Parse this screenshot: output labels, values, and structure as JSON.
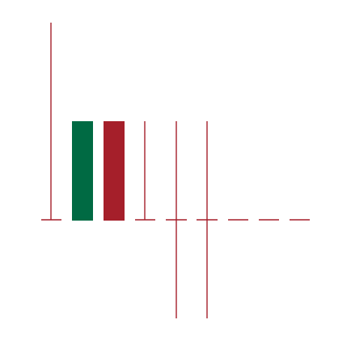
{
  "colors": {
    "background": "#ffffff",
    "line": "#a51f2a",
    "green_bar": "#006a43",
    "red_bar": "#a51f2a"
  },
  "glyphs": [
    {
      "name": "tall-stem-with-foot-glyph"
    },
    {
      "name": "green-bar-glyph"
    },
    {
      "name": "red-bar-glyph"
    },
    {
      "name": "short-stem-with-foot-glyph"
    },
    {
      "name": "plus-cross-glyph"
    },
    {
      "name": "plus-cross-glyph"
    },
    {
      "name": "dash-glyph"
    },
    {
      "name": "dash-glyph"
    },
    {
      "name": "dash-glyph"
    }
  ]
}
